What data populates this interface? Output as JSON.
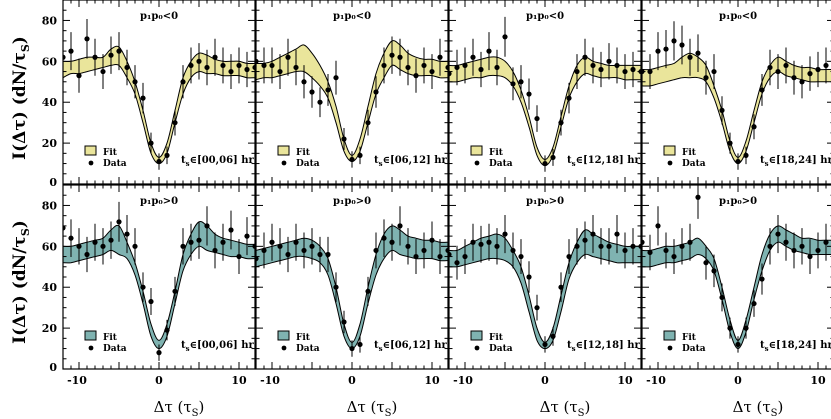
{
  "figure": {
    "ylabel_top": "I(Δτ) (dN/τ",
    "ylabel_top_sub": "S",
    "ylabel_top_close": ")",
    "ylabel_bottom": "I(Δτ) (dN/τ",
    "ylabel_bottom_sub": "S",
    "ylabel_bottom_close": ")",
    "xlabel_main": "Δτ (τ",
    "xlabel_sub": "S",
    "xlabel_close": ")",
    "legend_fit": "Fit",
    "legend_data": "Data",
    "ts_prefix": "t",
    "ts_prefix_sub": "s",
    "colors": {
      "band_top": "#eae59b",
      "band_bottom": "#7fb3b1",
      "ink": "#000000"
    }
  },
  "chart_data": [
    {
      "type": "scatter",
      "row": "p1p0<0",
      "title": "p₁p₀<0",
      "ts_range": "∈[00,06] hr",
      "x": [
        -12,
        -11,
        -10,
        -9,
        -8,
        -7,
        -6,
        -5,
        -4,
        -3,
        -2,
        -1,
        0,
        1,
        2,
        3,
        4,
        5,
        6,
        7,
        8,
        9,
        10,
        11,
        12
      ],
      "y": [
        62,
        65,
        53,
        71,
        62,
        55,
        63,
        65,
        57,
        50,
        42,
        20,
        11,
        14,
        30,
        50,
        58,
        60,
        57,
        62,
        58,
        55,
        58,
        56,
        57
      ],
      "fit_low": [
        52,
        54,
        54,
        55,
        56,
        57,
        58,
        58,
        52,
        44,
        30,
        15,
        10,
        15,
        30,
        44,
        52,
        55,
        54,
        54,
        53,
        53,
        53,
        52,
        52
      ],
      "fit_high": [
        60,
        60,
        61,
        62,
        62,
        62,
        66,
        67,
        60,
        50,
        36,
        20,
        13,
        20,
        36,
        52,
        60,
        64,
        63,
        61,
        60,
        60,
        60,
        59,
        59
      ],
      "xlim": [
        -12,
        12
      ],
      "ylim": [
        0,
        90
      ],
      "yticks": [
        0,
        20,
        40,
        60,
        80
      ],
      "xticks": [
        -10,
        0,
        10
      ]
    },
    {
      "type": "scatter",
      "row": "p1p0<0",
      "title": "p₁p₀<0",
      "ts_range": "∈[06,12] hr",
      "x": [
        -12,
        -11,
        -10,
        -9,
        -8,
        -7,
        -6,
        -5,
        -4,
        -3,
        -2,
        -1,
        0,
        1,
        2,
        3,
        4,
        5,
        6,
        7,
        8,
        9,
        10,
        11,
        12
      ],
      "y": [
        60,
        58,
        58,
        55,
        62,
        57,
        50,
        45,
        40,
        46,
        52,
        22,
        12,
        14,
        30,
        45,
        58,
        63,
        62,
        57,
        53,
        58,
        55,
        62,
        57
      ],
      "fit_low": [
        51,
        52,
        52,
        53,
        54,
        55,
        55,
        52,
        48,
        42,
        30,
        16,
        11,
        16,
        30,
        44,
        52,
        58,
        56,
        54,
        53,
        53,
        53,
        52,
        52
      ],
      "fit_high": [
        59,
        59,
        60,
        62,
        64,
        66,
        68,
        64,
        58,
        50,
        38,
        22,
        14,
        22,
        38,
        54,
        64,
        70,
        68,
        64,
        62,
        61,
        61,
        60,
        60
      ],
      "xlim": [
        -12,
        12
      ],
      "ylim": [
        0,
        90
      ],
      "yticks": [
        0,
        20,
        40,
        60,
        80
      ],
      "xticks": [
        -10,
        0,
        10
      ]
    },
    {
      "type": "scatter",
      "row": "p1p0<0",
      "title": "p₁p₀<0",
      "ts_range": "∈[12,18] hr",
      "x": [
        -12,
        -11,
        -10,
        -9,
        -8,
        -7,
        -6,
        -5,
        -4,
        -3,
        -2,
        -1,
        0,
        1,
        2,
        3,
        4,
        5,
        6,
        7,
        8,
        9,
        10,
        11,
        12
      ],
      "y": [
        54,
        57,
        58,
        62,
        56,
        65,
        57,
        72,
        49,
        50,
        44,
        32,
        10,
        13,
        30,
        42,
        55,
        62,
        58,
        56,
        60,
        58,
        55,
        56,
        55
      ],
      "fit_low": [
        50,
        50,
        51,
        52,
        52,
        53,
        53,
        52,
        48,
        40,
        28,
        14,
        9,
        14,
        28,
        42,
        50,
        54,
        53,
        52,
        52,
        52,
        51,
        51,
        51
      ],
      "fit_high": [
        58,
        58,
        59,
        60,
        61,
        62,
        62,
        60,
        55,
        46,
        33,
        18,
        12,
        18,
        33,
        48,
        58,
        62,
        60,
        59,
        58,
        58,
        58,
        58,
        58
      ],
      "xlim": [
        -12,
        12
      ],
      "ylim": [
        0,
        90
      ],
      "yticks": [
        0,
        20,
        40,
        60,
        80
      ],
      "xticks": [
        -10,
        0,
        10
      ]
    },
    {
      "type": "scatter",
      "row": "p1p0<0",
      "title": "p₁p₀<0",
      "ts_range": "∈[18,24] hr",
      "x": [
        -12,
        -11,
        -10,
        -9,
        -8,
        -7,
        -6,
        -5,
        -4,
        -3,
        -2,
        -1,
        0,
        1,
        2,
        3,
        4,
        5,
        6,
        7,
        8,
        9,
        10,
        11,
        12
      ],
      "y": [
        55,
        55,
        65,
        66,
        70,
        68,
        62,
        64,
        52,
        55,
        36,
        20,
        11,
        14,
        28,
        46,
        57,
        55,
        58,
        52,
        50,
        54,
        56,
        58,
        52
      ],
      "fit_low": [
        48,
        48,
        49,
        50,
        51,
        52,
        52,
        52,
        50,
        42,
        30,
        16,
        10,
        16,
        30,
        44,
        52,
        55,
        53,
        52,
        51,
        50,
        50,
        50,
        50
      ],
      "fit_high": [
        56,
        56,
        57,
        58,
        59,
        62,
        64,
        62,
        58,
        48,
        36,
        21,
        13,
        21,
        36,
        50,
        58,
        62,
        60,
        58,
        57,
        57,
        56,
        56,
        56
      ],
      "xlim": [
        -12,
        12
      ],
      "ylim": [
        0,
        90
      ],
      "yticks": [
        0,
        20,
        40,
        60,
        80
      ],
      "xticks": [
        -10,
        0,
        10
      ]
    },
    {
      "type": "scatter",
      "row": "p1p0>0",
      "title": "p₁p₀>0",
      "ts_range": "∈[00,06] hr",
      "x": [
        -12,
        -11,
        -10,
        -9,
        -8,
        -7,
        -6,
        -5,
        -4,
        -3,
        -2,
        -1,
        0,
        1,
        2,
        3,
        4,
        5,
        6,
        7,
        8,
        9,
        10,
        11,
        12
      ],
      "y": [
        69,
        64,
        60,
        56,
        62,
        60,
        63,
        72,
        66,
        60,
        40,
        33,
        8,
        19,
        38,
        60,
        62,
        63,
        70,
        58,
        62,
        68,
        55,
        65,
        60
      ],
      "fit_low": [
        52,
        52,
        53,
        54,
        55,
        56,
        58,
        56,
        54,
        46,
        32,
        16,
        10,
        16,
        32,
        48,
        56,
        60,
        58,
        57,
        56,
        55,
        55,
        54,
        54
      ],
      "fit_high": [
        60,
        60,
        61,
        62,
        63,
        64,
        68,
        70,
        62,
        52,
        38,
        22,
        14,
        22,
        38,
        56,
        66,
        72,
        70,
        66,
        64,
        63,
        62,
        61,
        61
      ],
      "xlim": [
        -12,
        12
      ],
      "ylim": [
        0,
        90
      ],
      "yticks": [
        0,
        20,
        40,
        60,
        80
      ],
      "xticks": [
        -10,
        0,
        10
      ]
    },
    {
      "type": "scatter",
      "row": "p1p0>0",
      "title": "p₁p₀>0",
      "ts_range": "∈[06,12] hr",
      "x": [
        -12,
        -11,
        -10,
        -9,
        -8,
        -7,
        -6,
        -5,
        -4,
        -3,
        -2,
        -1,
        0,
        1,
        2,
        3,
        4,
        5,
        6,
        7,
        8,
        9,
        10,
        11,
        12
      ],
      "y": [
        54,
        58,
        62,
        60,
        56,
        62,
        58,
        60,
        56,
        56,
        40,
        23,
        10,
        12,
        38,
        58,
        64,
        62,
        70,
        60,
        55,
        58,
        63,
        55,
        58
      ],
      "fit_low": [
        50,
        51,
        52,
        53,
        54,
        55,
        55,
        54,
        52,
        46,
        32,
        16,
        10,
        16,
        32,
        46,
        54,
        58,
        56,
        55,
        54,
        54,
        54,
        53,
        53
      ],
      "fit_high": [
        58,
        59,
        60,
        61,
        62,
        63,
        64,
        63,
        60,
        54,
        40,
        22,
        13,
        22,
        40,
        56,
        66,
        70,
        68,
        65,
        64,
        63,
        63,
        62,
        62
      ],
      "xlim": [
        -12,
        12
      ],
      "ylim": [
        0,
        90
      ],
      "yticks": [
        0,
        20,
        40,
        60,
        80
      ],
      "xticks": [
        -10,
        0,
        10
      ]
    },
    {
      "type": "scatter",
      "row": "p1p0>0",
      "title": "p₁p₀>0",
      "ts_range": "∈[12,18] hr",
      "x": [
        -12,
        -11,
        -10,
        -9,
        -8,
        -7,
        -6,
        -5,
        -4,
        -3,
        -2,
        -1,
        0,
        1,
        2,
        3,
        4,
        5,
        6,
        7,
        8,
        9,
        10,
        11,
        12
      ],
      "y": [
        56,
        52,
        55,
        62,
        61,
        62,
        60,
        66,
        58,
        55,
        45,
        30,
        12,
        16,
        40,
        55,
        60,
        63,
        66,
        60,
        60,
        66,
        58,
        60,
        60
      ],
      "fit_low": [
        50,
        50,
        51,
        52,
        53,
        54,
        54,
        53,
        50,
        42,
        28,
        14,
        10,
        14,
        28,
        44,
        52,
        56,
        55,
        54,
        53,
        52,
        52,
        52,
        52
      ],
      "fit_high": [
        58,
        58,
        60,
        62,
        64,
        65,
        66,
        64,
        58,
        50,
        36,
        20,
        13,
        20,
        36,
        52,
        62,
        68,
        66,
        64,
        62,
        61,
        60,
        60,
        60
      ],
      "xlim": [
        -12,
        12
      ],
      "ylim": [
        0,
        90
      ],
      "yticks": [
        0,
        20,
        40,
        60,
        80
      ],
      "xticks": [
        -10,
        0,
        10
      ]
    },
    {
      "type": "scatter",
      "row": "p1p0>0",
      "title": "p₁p₀>0",
      "ts_range": "∈[18,24] hr",
      "x": [
        -12,
        -11,
        -10,
        -9,
        -8,
        -7,
        -6,
        -5,
        -4,
        -3,
        -2,
        -1,
        0,
        1,
        2,
        3,
        4,
        5,
        6,
        7,
        8,
        9,
        10,
        11,
        12
      ],
      "y": [
        62,
        57,
        70,
        58,
        55,
        60,
        62,
        84,
        52,
        48,
        35,
        20,
        12,
        20,
        32,
        44,
        60,
        66,
        62,
        58,
        60,
        55,
        58,
        62,
        62
      ],
      "fit_low": [
        50,
        50,
        51,
        52,
        52,
        53,
        54,
        56,
        54,
        48,
        34,
        18,
        10,
        18,
        34,
        48,
        58,
        62,
        60,
        58,
        57,
        56,
        56,
        56,
        56
      ],
      "fit_high": [
        58,
        58,
        59,
        60,
        60,
        61,
        62,
        64,
        60,
        54,
        40,
        24,
        14,
        24,
        40,
        56,
        66,
        70,
        68,
        66,
        64,
        64,
        63,
        63,
        63
      ],
      "xlim": [
        -12,
        12
      ],
      "ylim": [
        0,
        90
      ],
      "yticks": [
        0,
        20,
        40,
        60,
        80
      ],
      "xticks": [
        -10,
        0,
        10
      ]
    }
  ]
}
